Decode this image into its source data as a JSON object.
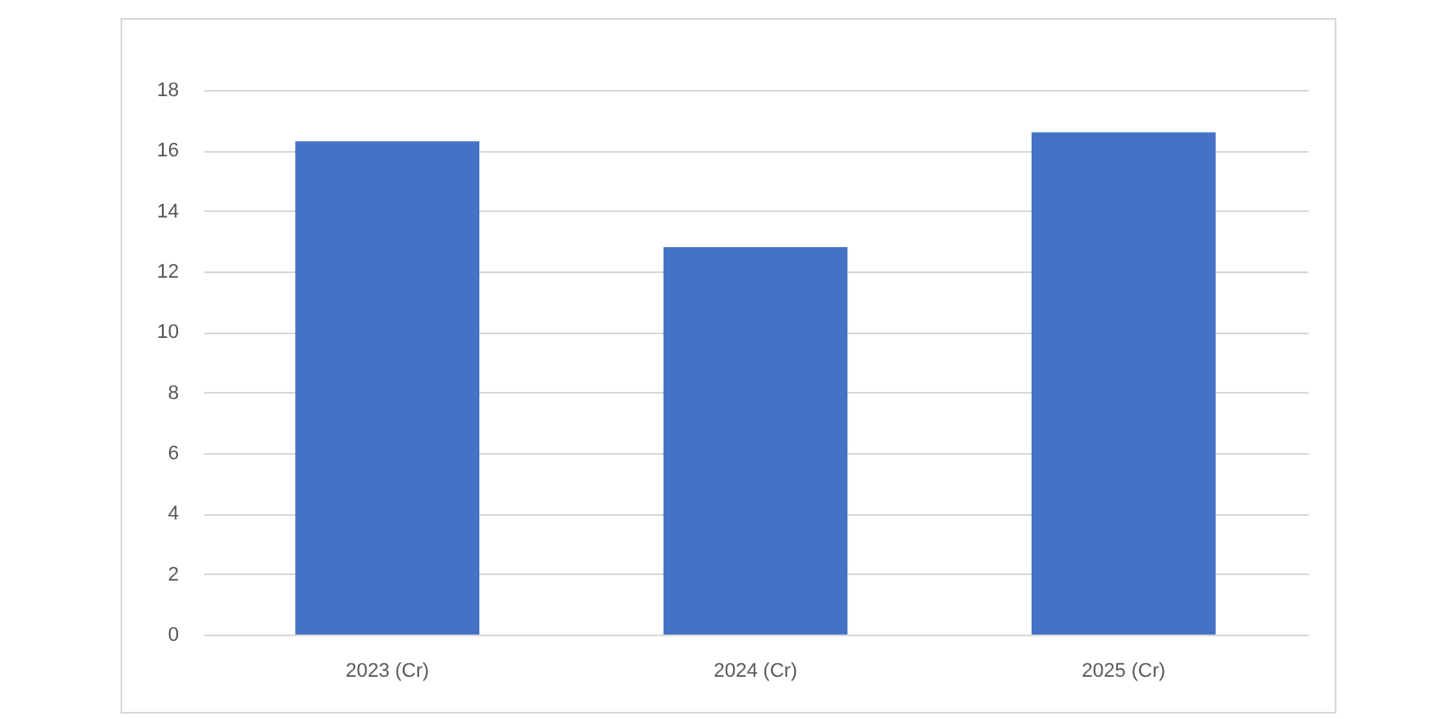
{
  "chart_data": {
    "type": "bar",
    "categories": [
      "2023 (Cr)",
      "2024 (Cr)",
      "2025 (Cr)"
    ],
    "values": [
      16.3,
      12.8,
      16.6
    ],
    "color": "#4472c4",
    "ylim": [
      0,
      18
    ],
    "yticks": [
      0,
      2,
      4,
      6,
      8,
      10,
      12,
      14,
      16,
      18
    ],
    "grid": "y"
  }
}
